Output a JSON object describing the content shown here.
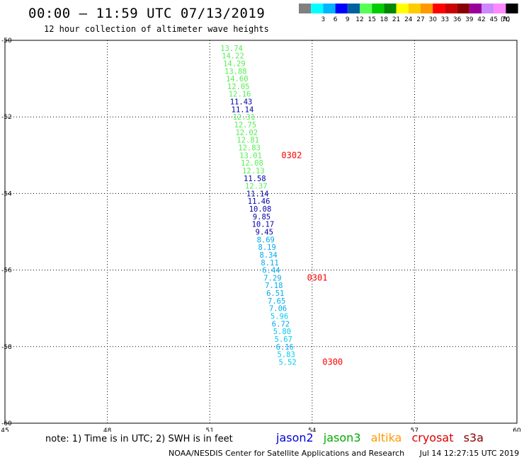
{
  "header": {
    "title": "00:00 – 11:59 UTC 07/13/2019",
    "subtitle": "12 hour collection of altimeter wave heights"
  },
  "color_scale": {
    "unit_label": "(ft)",
    "bins": [
      {
        "label": "",
        "color": "#808080"
      },
      {
        "label": "3",
        "color": "#00ffff"
      },
      {
        "label": "6",
        "color": "#00b4ff"
      },
      {
        "label": "9",
        "color": "#0000ff"
      },
      {
        "label": "12",
        "color": "#0060a0"
      },
      {
        "label": "15",
        "color": "#55ff55"
      },
      {
        "label": "18",
        "color": "#00cc00"
      },
      {
        "label": "21",
        "color": "#008800"
      },
      {
        "label": "24",
        "color": "#ffff00"
      },
      {
        "label": "27",
        "color": "#ffcc00"
      },
      {
        "label": "30",
        "color": "#ff9900"
      },
      {
        "label": "33",
        "color": "#ff0000"
      },
      {
        "label": "36",
        "color": "#cc0000"
      },
      {
        "label": "39",
        "color": "#880000"
      },
      {
        "label": "42",
        "color": "#990099"
      },
      {
        "label": "45",
        "color": "#cc88ff"
      },
      {
        "label": "70",
        "color": "#ff88ff"
      },
      {
        "label": "",
        "color": "#000000"
      }
    ]
  },
  "map": {
    "lon_range": [
      45,
      60
    ],
    "lat_range": [
      -60,
      -50
    ],
    "lon_ticks": [
      "45",
      "48",
      "51",
      "54",
      "57",
      "60"
    ],
    "lat_ticks": [
      "-50",
      "-52",
      "-54",
      "-56",
      "-58",
      "-60"
    ],
    "observations": [
      {
        "lat": -50.2,
        "lon": 51.64,
        "value": "13.74",
        "color": "#55ee55"
      },
      {
        "lat": -50.4,
        "lon": 51.68,
        "value": "14.22",
        "color": "#55ee55"
      },
      {
        "lat": -50.6,
        "lon": 51.72,
        "value": "14.29",
        "color": "#55ee55"
      },
      {
        "lat": -50.8,
        "lon": 51.76,
        "value": "13.88",
        "color": "#55ee55"
      },
      {
        "lat": -51.0,
        "lon": 51.8,
        "value": "14.60",
        "color": "#55ee55"
      },
      {
        "lat": -51.2,
        "lon": 51.84,
        "value": "12.05",
        "color": "#55ee55"
      },
      {
        "lat": -51.4,
        "lon": 51.88,
        "value": "12.16",
        "color": "#55ee55"
      },
      {
        "lat": -51.6,
        "lon": 51.92,
        "value": "11.43",
        "color": "#0000aa"
      },
      {
        "lat": -51.8,
        "lon": 51.96,
        "value": "11.14",
        "color": "#0000aa"
      },
      {
        "lat": -52.0,
        "lon": 52.0,
        "value": "12.31",
        "color": "#55ee55"
      },
      {
        "lat": -52.2,
        "lon": 52.04,
        "value": "12.75",
        "color": "#55ee55"
      },
      {
        "lat": -52.4,
        "lon": 52.08,
        "value": "12.02",
        "color": "#55ee55"
      },
      {
        "lat": -52.6,
        "lon": 52.12,
        "value": "12.81",
        "color": "#55ee55"
      },
      {
        "lat": -52.8,
        "lon": 52.16,
        "value": "12.83",
        "color": "#55ee55"
      },
      {
        "lat": -53.0,
        "lon": 52.2,
        "value": "13.01",
        "color": "#55ee55"
      },
      {
        "lat": -53.2,
        "lon": 52.24,
        "value": "12.08",
        "color": "#55ee55"
      },
      {
        "lat": -53.4,
        "lon": 52.28,
        "value": "12.13",
        "color": "#55ee55"
      },
      {
        "lat": -53.6,
        "lon": 52.32,
        "value": "11.58",
        "color": "#0000aa"
      },
      {
        "lat": -53.8,
        "lon": 52.36,
        "value": "12.37",
        "color": "#55ee55"
      },
      {
        "lat": -54.0,
        "lon": 52.4,
        "value": "11.14",
        "color": "#0000aa"
      },
      {
        "lat": -54.2,
        "lon": 52.44,
        "value": "11.46",
        "color": "#0000aa"
      },
      {
        "lat": -54.4,
        "lon": 52.48,
        "value": "10.08",
        "color": "#0000aa"
      },
      {
        "lat": -54.6,
        "lon": 52.52,
        "value": "9.85",
        "color": "#0000aa"
      },
      {
        "lat": -54.8,
        "lon": 52.56,
        "value": "10.17",
        "color": "#0000aa"
      },
      {
        "lat": -55.0,
        "lon": 52.6,
        "value": "9.45",
        "color": "#0000aa"
      },
      {
        "lat": -55.2,
        "lon": 52.64,
        "value": "8.69",
        "color": "#00aaee"
      },
      {
        "lat": -55.4,
        "lon": 52.68,
        "value": "8.19",
        "color": "#00aaee"
      },
      {
        "lat": -55.6,
        "lon": 52.72,
        "value": "8.34",
        "color": "#00aaee"
      },
      {
        "lat": -55.8,
        "lon": 52.76,
        "value": "8.11",
        "color": "#00aaee"
      },
      {
        "lat": -56.0,
        "lon": 52.8,
        "value": "6.44",
        "color": "#00aaee"
      },
      {
        "lat": -56.2,
        "lon": 52.84,
        "value": "7.29",
        "color": "#00aaee"
      },
      {
        "lat": -56.4,
        "lon": 52.88,
        "value": "7.18",
        "color": "#00aaee"
      },
      {
        "lat": -56.6,
        "lon": 52.92,
        "value": "6.51",
        "color": "#00aaee"
      },
      {
        "lat": -56.8,
        "lon": 52.96,
        "value": "7.65",
        "color": "#00aaee"
      },
      {
        "lat": -57.0,
        "lon": 53.0,
        "value": "7.06",
        "color": "#00aaee"
      },
      {
        "lat": -57.2,
        "lon": 53.04,
        "value": "5.96",
        "color": "#00ccee"
      },
      {
        "lat": -57.4,
        "lon": 53.08,
        "value": "6.72",
        "color": "#00aaee"
      },
      {
        "lat": -57.6,
        "lon": 53.12,
        "value": "5.80",
        "color": "#00ccee"
      },
      {
        "lat": -57.8,
        "lon": 53.16,
        "value": "5.67",
        "color": "#00ccee"
      },
      {
        "lat": -58.0,
        "lon": 53.2,
        "value": "6.16",
        "color": "#00aaee"
      },
      {
        "lat": -58.2,
        "lon": 53.24,
        "value": "5.83",
        "color": "#00ccee"
      },
      {
        "lat": -58.4,
        "lon": 53.28,
        "value": "5.52",
        "color": "#00ccee"
      }
    ],
    "time_labels": [
      {
        "lat": -53.0,
        "lon": 53.1,
        "text": "0302",
        "color": "#ff0000"
      },
      {
        "lat": -56.2,
        "lon": 53.85,
        "text": "0301",
        "color": "#ff0000"
      },
      {
        "lat": -58.4,
        "lon": 54.3,
        "text": "0300",
        "color": "#ff0000"
      }
    ]
  },
  "footer": {
    "note": "note: 1) Time is in UTC; 2) SWH is in feet",
    "satellites": [
      {
        "name": "jason2",
        "color": "#0000dd"
      },
      {
        "name": "jason3",
        "color": "#00aa00"
      },
      {
        "name": "altika",
        "color": "#ff9900"
      },
      {
        "name": "cryosat",
        "color": "#dd0000"
      },
      {
        "name": "s3a",
        "color": "#880000"
      }
    ],
    "credit": "NOAA/NESDIS Center for Satellite Applications and Research",
    "timestamp": "Jul 14 12:27:15 UTC 2019"
  }
}
